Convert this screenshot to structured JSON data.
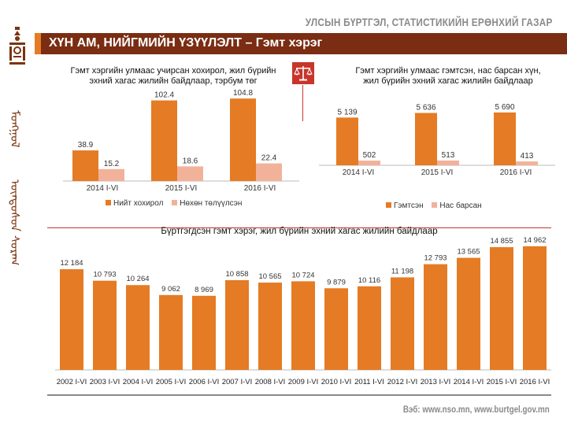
{
  "header": {
    "agency": "УЛСЫН БҮРТГЭЛ, СТАТИСТИКИЙН ЕРӨНХИЙ ГАЗАР",
    "title": "ХҮН АМ, НИЙГМИЙН ҮЗҮҮЛЭЛТ – Гэмт хэрэг"
  },
  "sidebar": {
    "script_upper": "ᠮᠣᠩᠭᠣᠯ",
    "script_lower": "ᠦᠨᠳᠦᠰᠦᠨ ᠰᠤᠷᠠᠭ"
  },
  "colors": {
    "orange": "#e57b24",
    "light": "#f2b29a",
    "maroon": "#7a2d12",
    "red": "#c8352b"
  },
  "chart_data": [
    {
      "type": "bar",
      "title": "Гэмт хэргийн улмаас учирсан хохирол, жил бүрийн эхний хагас жилийн байдлаар, тэрбум төг",
      "categories": [
        "2014 I-VI",
        "2015 I-VI",
        "2016 I-VI"
      ],
      "series": [
        {
          "name": "Нийт хохирол",
          "values": [
            38.9,
            102.4,
            104.8
          ],
          "labels": [
            "38.9",
            "102.4",
            "104.8"
          ]
        },
        {
          "name": "Нөхөн төлүүлсэн",
          "values": [
            15.2,
            18.6,
            22.4
          ],
          "labels": [
            "15.2",
            "18.6",
            "22.4"
          ]
        }
      ],
      "legend": "bottom"
    },
    {
      "type": "bar",
      "title": "Гэмт хэргийн улмаас гэмтсэн, нас барсан хүн, жил бүрийн эхний хагас жилийн байдлаар",
      "categories": [
        "2014 I-VI",
        "2015 I-VI",
        "2016 I-VI"
      ],
      "series": [
        {
          "name": "Гэмтсэн",
          "values": [
            5139,
            5636,
            5690
          ],
          "labels": [
            "5 139",
            "5 636",
            "5 690"
          ]
        },
        {
          "name": "Нас барсан",
          "values": [
            502,
            513,
            413
          ],
          "labels": [
            "502",
            "513",
            "413"
          ]
        }
      ],
      "legend": "bottom"
    },
    {
      "type": "bar",
      "title": "Бүртгэгдсэн гэмт хэрэг, жил бүрийн эхний хагас жилийн байдлаар",
      "categories": [
        "2002 I-VI",
        "2003 I-VI",
        "2004 I-VI",
        "2005 I-VI",
        "2006 I-VI",
        "2007 I-VI",
        "2008 I-VI",
        "2009 I-VI",
        "2010 I-VI",
        "2011 I-VI",
        "2012 I-VI",
        "2013 I-VI",
        "2014 I-VI",
        "2015 I-VI",
        "2016 I-VI"
      ],
      "values": [
        12184,
        10793,
        10264,
        9062,
        8969,
        10858,
        10565,
        10724,
        9879,
        10116,
        11198,
        12793,
        13565,
        14855,
        14962
      ],
      "labels": [
        "12 184",
        "10 793",
        "10 264",
        "9 062",
        "8 969",
        "10 858",
        "10 565",
        "10 724",
        "9 879",
        "10 116",
        "11 198",
        "12 793",
        "13 565",
        "14 855",
        "14 962"
      ]
    }
  ],
  "footer": {
    "web": "Вэб: www.nso.mn, www.burtgel.gov.mn"
  }
}
